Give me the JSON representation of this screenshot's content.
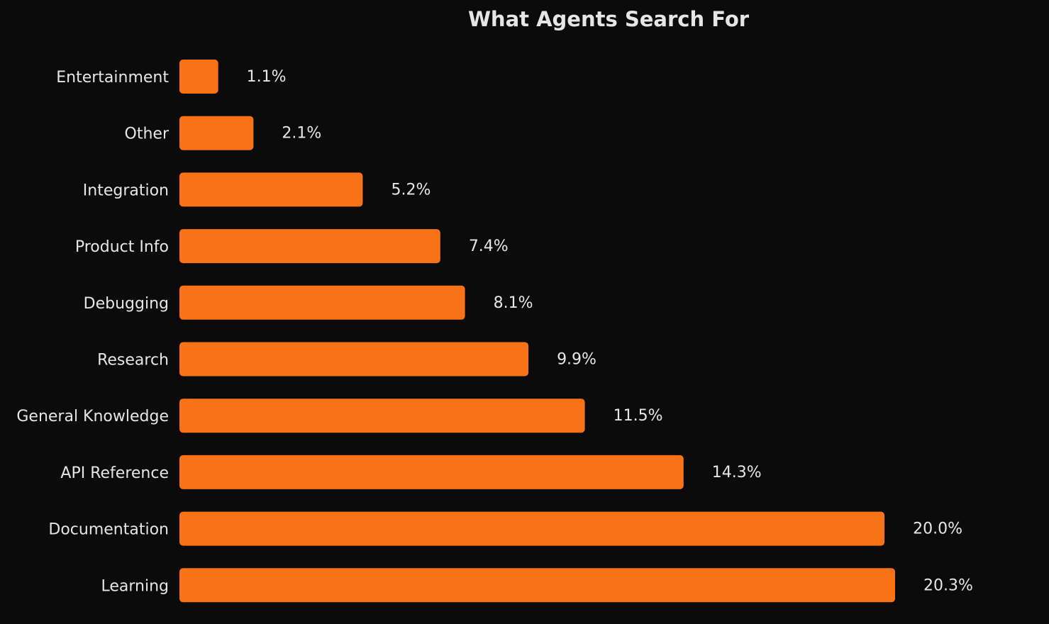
{
  "colors": {
    "background": "#0b0b0b",
    "bar": "#f97316",
    "text": "#e6e6e6"
  },
  "chart_data": {
    "type": "bar",
    "orientation": "horizontal",
    "title": "What Agents Search For",
    "xlabel": "",
    "ylabel": "",
    "grid": false,
    "legend": "none",
    "xlim": [
      0,
      20.3
    ],
    "categories": [
      "Entertainment",
      "Other",
      "Integration",
      "Product Info",
      "Debugging",
      "Research",
      "General Knowledge",
      "API Reference",
      "Documentation",
      "Learning"
    ],
    "values": [
      1.1,
      2.1,
      5.2,
      7.4,
      8.1,
      9.9,
      11.5,
      14.3,
      20.0,
      20.3
    ],
    "value_labels": [
      "1.1%",
      "2.1%",
      "5.2%",
      "7.4%",
      "8.1%",
      "9.9%",
      "11.5%",
      "14.3%",
      "20.0%",
      "20.3%"
    ]
  }
}
